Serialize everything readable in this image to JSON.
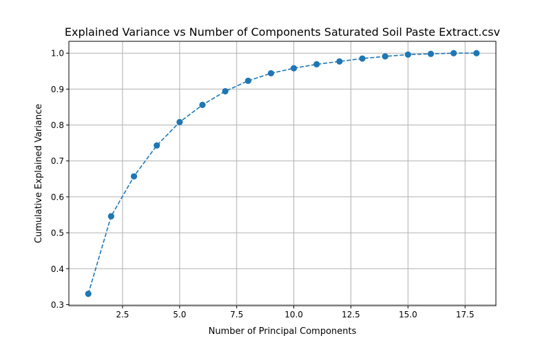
{
  "chart_data": {
    "type": "line",
    "title": "Explained Variance vs Number of Components Saturated Soil Paste Extract.csv",
    "xlabel": "Number of Principal Components",
    "ylabel": "Cumulative Explained Variance",
    "xlim": [
      0.15,
      18.85
    ],
    "ylim": [
      0.297,
      1.033
    ],
    "xticks": [
      2.5,
      5.0,
      7.5,
      10.0,
      12.5,
      15.0,
      17.5
    ],
    "xtick_labels": [
      "2.5",
      "5.0",
      "7.5",
      "10.0",
      "12.5",
      "15.0",
      "17.5"
    ],
    "yticks": [
      0.3,
      0.4,
      0.5,
      0.6,
      0.7,
      0.8,
      0.9,
      1.0
    ],
    "ytick_labels": [
      "0.3",
      "0.4",
      "0.5",
      "0.6",
      "0.7",
      "0.8",
      "0.9",
      "1.0"
    ],
    "grid": true,
    "line_style": "dashed",
    "marker": "circle",
    "color": "#1f77b4",
    "x": [
      1,
      2,
      3,
      4,
      5,
      6,
      7,
      8,
      9,
      10,
      11,
      12,
      13,
      14,
      15,
      16,
      17,
      18
    ],
    "y": [
      0.33,
      0.546,
      0.657,
      0.743,
      0.808,
      0.856,
      0.894,
      0.923,
      0.944,
      0.958,
      0.969,
      0.977,
      0.985,
      0.991,
      0.996,
      0.998,
      1.0,
      1.0
    ]
  }
}
